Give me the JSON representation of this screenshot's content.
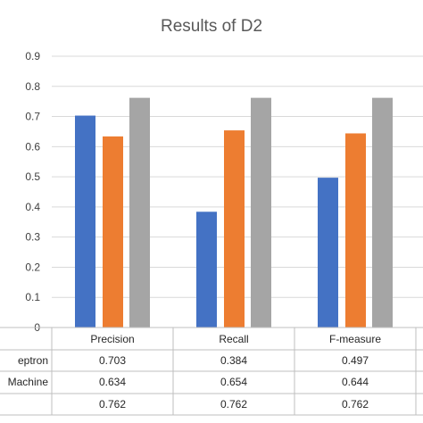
{
  "chart_data": {
    "type": "bar",
    "title": "Results of D2",
    "categories": [
      "Precision",
      "Recall",
      "F-measure"
    ],
    "series": [
      {
        "name": "eptron",
        "color": "#4472c4",
        "values": [
          0.703,
          0.384,
          0.497
        ]
      },
      {
        "name": "Machine",
        "color": "#ed7d31",
        "values": [
          0.634,
          0.654,
          0.644
        ]
      },
      {
        "name": "",
        "color": "#a5a5a5",
        "values": [
          0.762,
          0.762,
          0.762
        ]
      }
    ],
    "ylim": [
      0,
      0.9
    ],
    "yticks": [
      "0",
      "0.1",
      "0.2",
      "0.3",
      "0.4",
      "0.5",
      "0.6",
      "0.7",
      "0.8",
      "0.9"
    ],
    "table": {
      "rows": [
        {
          "label": "eptron",
          "cells": [
            "0.703",
            "0.384",
            "0.497"
          ]
        },
        {
          "label": "Machine",
          "cells": [
            "0.634",
            "0.654",
            "0.644"
          ]
        },
        {
          "label": "",
          "cells": [
            "0.762",
            "0.762",
            "0.762"
          ]
        }
      ]
    },
    "grid": true,
    "legend": "data table"
  }
}
